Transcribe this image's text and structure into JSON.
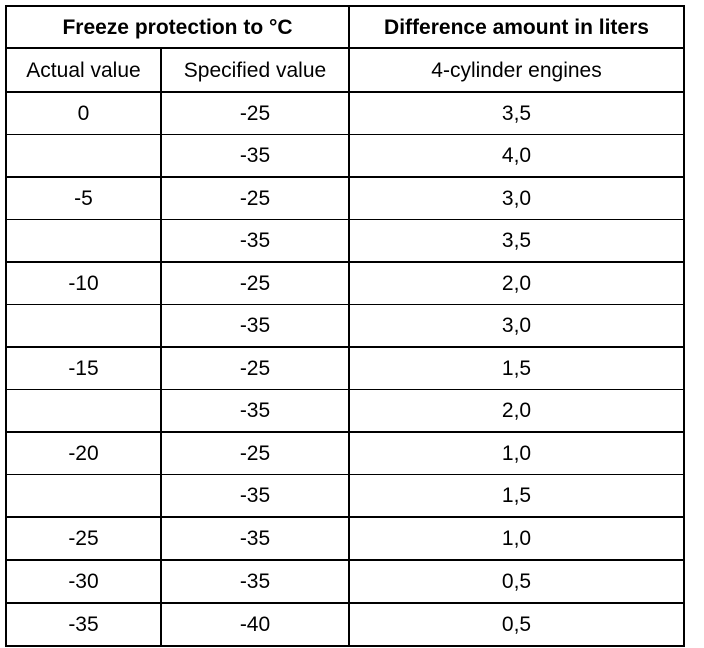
{
  "header": {
    "freeze_protection": "Freeze protection to °C",
    "difference_amount": "Difference amount in liters"
  },
  "subheader": {
    "actual_value": "Actual value",
    "specified_value": "Specified value",
    "engines": "4-cylinder engines"
  },
  "rows": [
    {
      "actual": "0",
      "specified": "-25",
      "amount": "3,5"
    },
    {
      "actual": "",
      "specified": "-35",
      "amount": "4,0"
    },
    {
      "actual": "-5",
      "specified": "-25",
      "amount": "3,0"
    },
    {
      "actual": "",
      "specified": "-35",
      "amount": "3,5"
    },
    {
      "actual": "-10",
      "specified": "-25",
      "amount": "2,0"
    },
    {
      "actual": "",
      "specified": "-35",
      "amount": "3,0"
    },
    {
      "actual": "-15",
      "specified": "-25",
      "amount": "1,5"
    },
    {
      "actual": "",
      "specified": "-35",
      "amount": "2,0"
    },
    {
      "actual": "-20",
      "specified": "-25",
      "amount": "1,0"
    },
    {
      "actual": "",
      "specified": "-35",
      "amount": "1,5"
    },
    {
      "actual": "-25",
      "specified": "-35",
      "amount": "1,0"
    },
    {
      "actual": "-30",
      "specified": "-35",
      "amount": "0,5"
    },
    {
      "actual": "-35",
      "specified": "-40",
      "amount": "0,5"
    }
  ]
}
